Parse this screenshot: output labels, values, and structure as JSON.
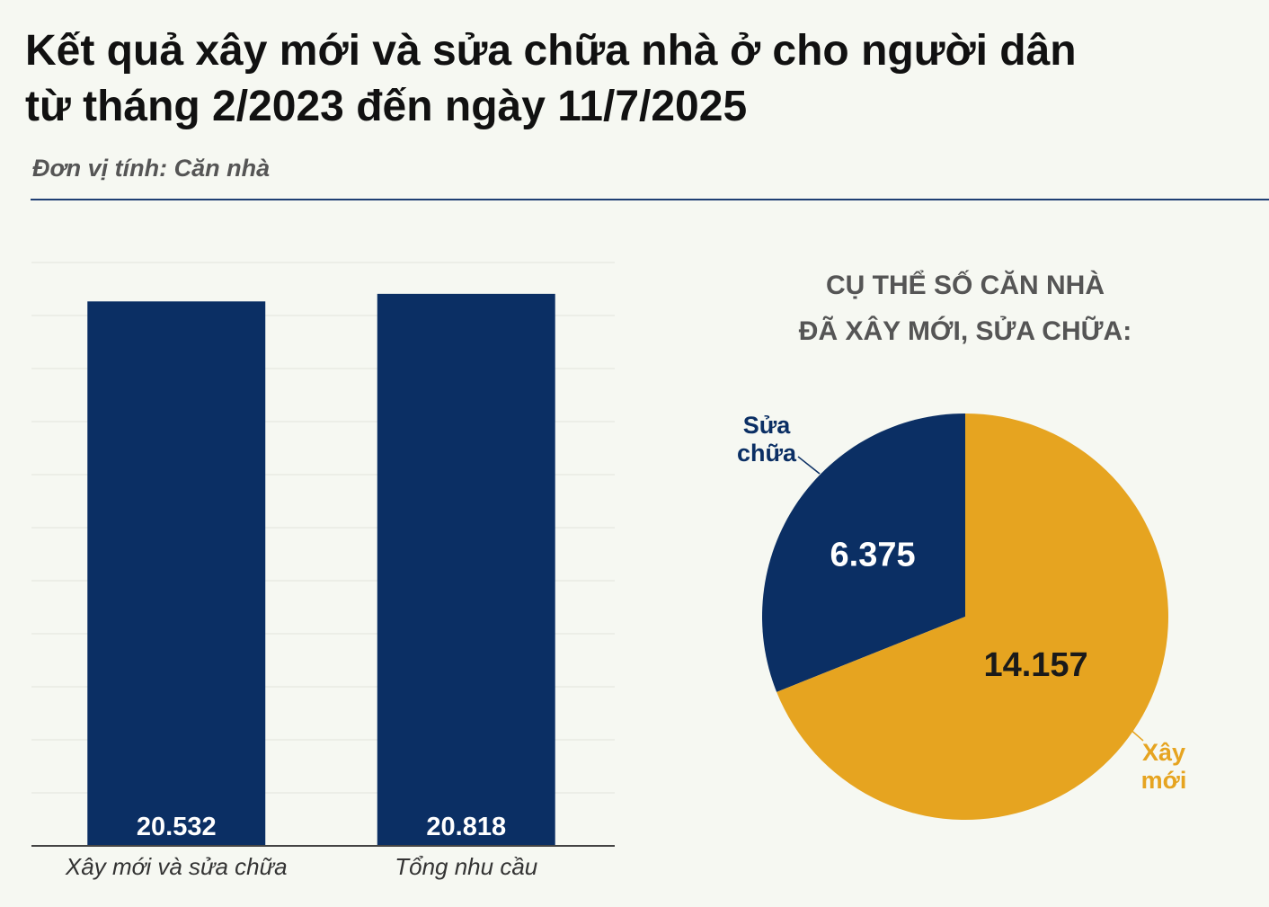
{
  "header": {
    "title_line1": "Kết quả xây mới và sửa chữa nhà ở cho người dân",
    "title_line2": "từ tháng 2/2023 đến ngày 11/7/2025",
    "unit": "Đơn vị tính: Căn nhà"
  },
  "colors": {
    "navy": "#0b2f64",
    "gold": "#e6a420",
    "gridline": "#e1e4dc",
    "axis": "#444444"
  },
  "chart_data": [
    {
      "type": "bar",
      "categories": [
        "Xây mới và sửa chữa",
        "Tổng nhu cầu"
      ],
      "values": [
        20532,
        20818
      ],
      "value_labels": [
        "20.532",
        "20.818"
      ],
      "ylim": [
        0,
        22000
      ],
      "grid": true,
      "legend": "none"
    },
    {
      "type": "pie",
      "title_lines": [
        "CỤ THỂ SỐ CĂN NHÀ",
        "ĐÃ XÂY MỚI, SỬA CHỮA:"
      ],
      "slices": [
        {
          "name_lines": [
            "Sửa",
            "chữa"
          ],
          "value": 6375,
          "value_label": "6.375",
          "color": "#0b2f64",
          "text_color": "#ffffff"
        },
        {
          "name_lines": [
            "Xây",
            "mới"
          ],
          "value": 14157,
          "value_label": "14.157",
          "color": "#e6a420",
          "text_color": "#1a1a1a"
        }
      ]
    }
  ]
}
